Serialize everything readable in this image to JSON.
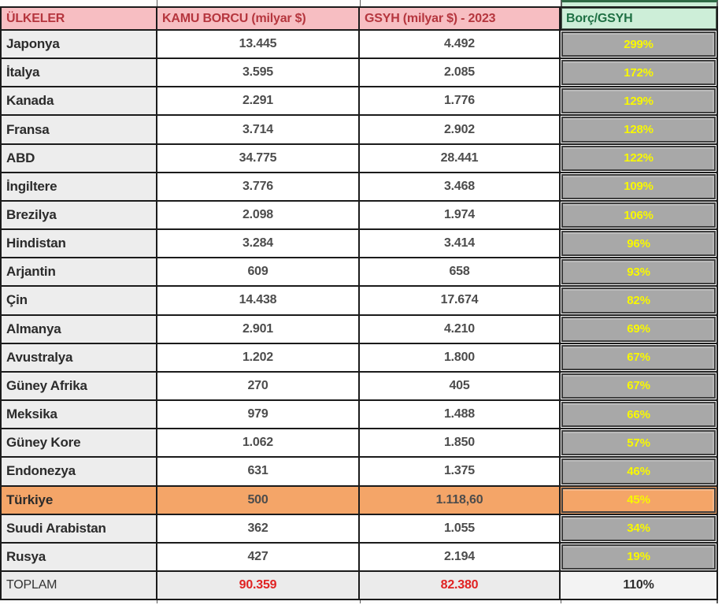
{
  "table": {
    "columns": [
      {
        "key": "country",
        "label": "ÜLKELER"
      },
      {
        "key": "debt",
        "label": "KAMU BORCU (milyar $)"
      },
      {
        "key": "gdp",
        "label": "GSYH (milyar $) - 2023"
      },
      {
        "key": "ratio",
        "label": "Borç/GSYH"
      }
    ],
    "rows": [
      {
        "country": "Japonya",
        "debt": "13.445",
        "gdp": "4.492",
        "ratio": "299%"
      },
      {
        "country": "İtalya",
        "debt": "3.595",
        "gdp": "2.085",
        "ratio": "172%"
      },
      {
        "country": "Kanada",
        "debt": "2.291",
        "gdp": "1.776",
        "ratio": "129%"
      },
      {
        "country": "Fransa",
        "debt": "3.714",
        "gdp": "2.902",
        "ratio": "128%"
      },
      {
        "country": "ABD",
        "debt": "34.775",
        "gdp": "28.441",
        "ratio": "122%"
      },
      {
        "country": "İngiltere",
        "debt": "3.776",
        "gdp": "3.468",
        "ratio": "109%"
      },
      {
        "country": "Brezilya",
        "debt": "2.098",
        "gdp": "1.974",
        "ratio": "106%"
      },
      {
        "country": "Hindistan",
        "debt": "3.284",
        "gdp": "3.414",
        "ratio": "96%"
      },
      {
        "country": "Arjantin",
        "debt": "609",
        "gdp": "658",
        "ratio": "93%"
      },
      {
        "country": "Çin",
        "debt": "14.438",
        "gdp": "17.674",
        "ratio": "82%"
      },
      {
        "country": "Almanya",
        "debt": "2.901",
        "gdp": "4.210",
        "ratio": "69%"
      },
      {
        "country": "Avustralya",
        "debt": "1.202",
        "gdp": "1.800",
        "ratio": "67%"
      },
      {
        "country": "Güney Afrika",
        "debt": "270",
        "gdp": "405",
        "ratio": "67%"
      },
      {
        "country": "Meksika",
        "debt": "979",
        "gdp": "1.488",
        "ratio": "66%"
      },
      {
        "country": "Güney Kore",
        "debt": "1.062",
        "gdp": "1.850",
        "ratio": "57%"
      },
      {
        "country": "Endonezya",
        "debt": "631",
        "gdp": "1.375",
        "ratio": "46%"
      },
      {
        "country": "Türkiye",
        "debt": "500",
        "gdp": "1.118,60",
        "ratio": "45%",
        "highlight": true
      },
      {
        "country": "Suudi Arabistan",
        "debt": "362",
        "gdp": "1.055",
        "ratio": "34%"
      },
      {
        "country": "Rusya",
        "debt": "427",
        "gdp": "2.194",
        "ratio": "19%"
      }
    ],
    "total_row": {
      "country": "TOPLAM",
      "debt": "90.359",
      "gdp": "82.380",
      "ratio": "110%"
    }
  },
  "colors": {
    "header_pink_bg": "#f7bec2",
    "header_pink_text": "#b5363e",
    "header_green_bg": "#cdeed8",
    "header_green_text": "#1f7044",
    "ratio_cell_bg": "#a8a8a8",
    "ratio_text_yellow": "#f8f800",
    "country_cell_bg": "#ededed",
    "highlight_orange_bg": "#f4a568",
    "total_value_red": "#e02222",
    "grid_line": "#1b1b1b"
  }
}
